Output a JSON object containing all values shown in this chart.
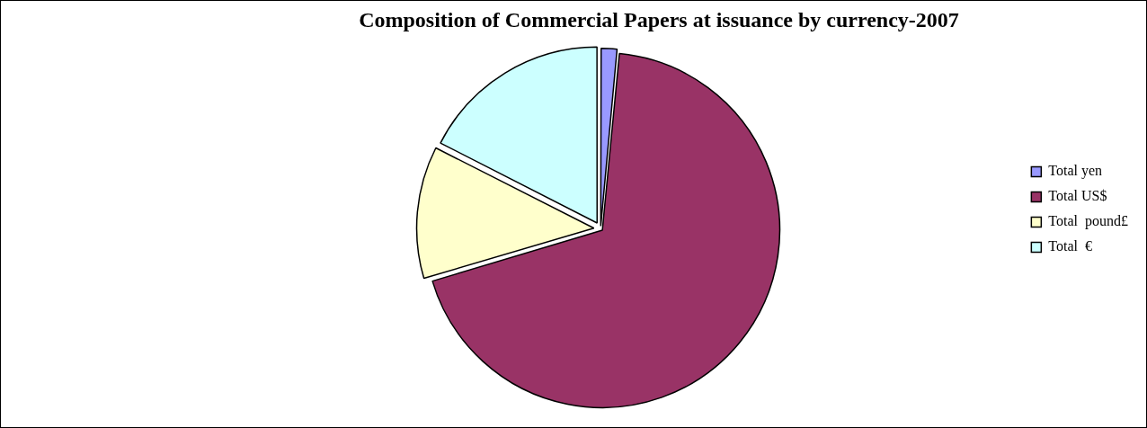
{
  "chart_data": {
    "type": "pie",
    "title": "Composition of Commercial Papers at issuance by currency-2007",
    "categories": [
      "Total yen",
      "Total US$",
      "Total  pound£",
      "Total  €"
    ],
    "values": [
      1.5,
      68.9,
      12.1,
      17.5
    ],
    "colors": [
      "#9999ff",
      "#993366",
      "#ffffcc",
      "#ccffff"
    ],
    "legend": "right"
  }
}
